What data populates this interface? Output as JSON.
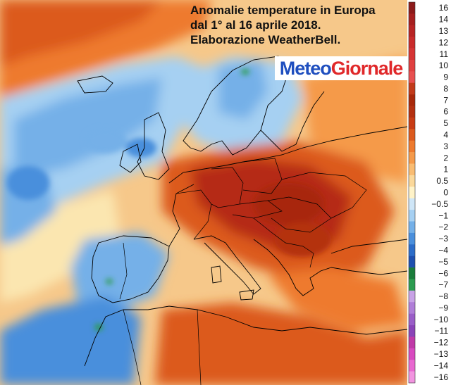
{
  "title_lines": [
    "Anomalie temperature in Europa",
    "dal  1° al 16 aprile 2018.",
    "Elaborazione WeatherBell."
  ],
  "logo": {
    "part1": "Meteo",
    "part2": "Giornale"
  },
  "legend": {
    "unit_label": "",
    "steps": [
      {
        "label": "16",
        "color": "#8c1a1a"
      },
      {
        "label": "14",
        "color": "#a61f1f"
      },
      {
        "label": "13",
        "color": "#b82424"
      },
      {
        "label": "12",
        "color": "#c92b2b"
      },
      {
        "label": "11",
        "color": "#d63434"
      },
      {
        "label": "10",
        "color": "#e04040"
      },
      {
        "label": "9",
        "color": "#e85050"
      },
      {
        "label": "8",
        "color": "#c23a1a"
      },
      {
        "label": "7",
        "color": "#a8280a"
      },
      {
        "label": "6",
        "color": "#b43010"
      },
      {
        "label": "5",
        "color": "#c83c14"
      },
      {
        "label": "4",
        "color": "#dc5a1e"
      },
      {
        "label": "3",
        "color": "#ee7a2e"
      },
      {
        "label": "2",
        "color": "#f59a4a"
      },
      {
        "label": "1",
        "color": "#f9bc72"
      },
      {
        "label": "0.5",
        "color": "#fbd89a"
      },
      {
        "label": "0",
        "color": "#fff3c8"
      },
      {
        "label": "−0.5",
        "color": "#cfe6f7"
      },
      {
        "label": "−1",
        "color": "#a6d0f2"
      },
      {
        "label": "−2",
        "color": "#74b0e8"
      },
      {
        "label": "−3",
        "color": "#4a8fdc"
      },
      {
        "label": "−4",
        "color": "#2c6cc8"
      },
      {
        "label": "−5",
        "color": "#1e4fae"
      },
      {
        "label": "−6",
        "color": "#1a7c3a"
      },
      {
        "label": "−7",
        "color": "#2c9c50"
      },
      {
        "label": "−8",
        "color": "#c8a2e6"
      },
      {
        "label": "−9",
        "color": "#b07ed8"
      },
      {
        "label": "−10",
        "color": "#9a5ec8"
      },
      {
        "label": "−11",
        "color": "#8a44b8"
      },
      {
        "label": "−12",
        "color": "#c03aa8"
      },
      {
        "label": "−13",
        "color": "#d84ac0"
      },
      {
        "label": "−14",
        "color": "#e868d0"
      },
      {
        "label": "−16",
        "color": "#f294e0"
      }
    ]
  },
  "colors": {
    "warm_strong": "#b52a12",
    "warm": "#dc5a1e",
    "warm_light": "#f59a4a",
    "neutral": "#fbe6b0",
    "cold_light": "#bcdcf5",
    "cold": "#74b0e8",
    "cold_strong": "#2c6cc8",
    "border": "#000000"
  }
}
